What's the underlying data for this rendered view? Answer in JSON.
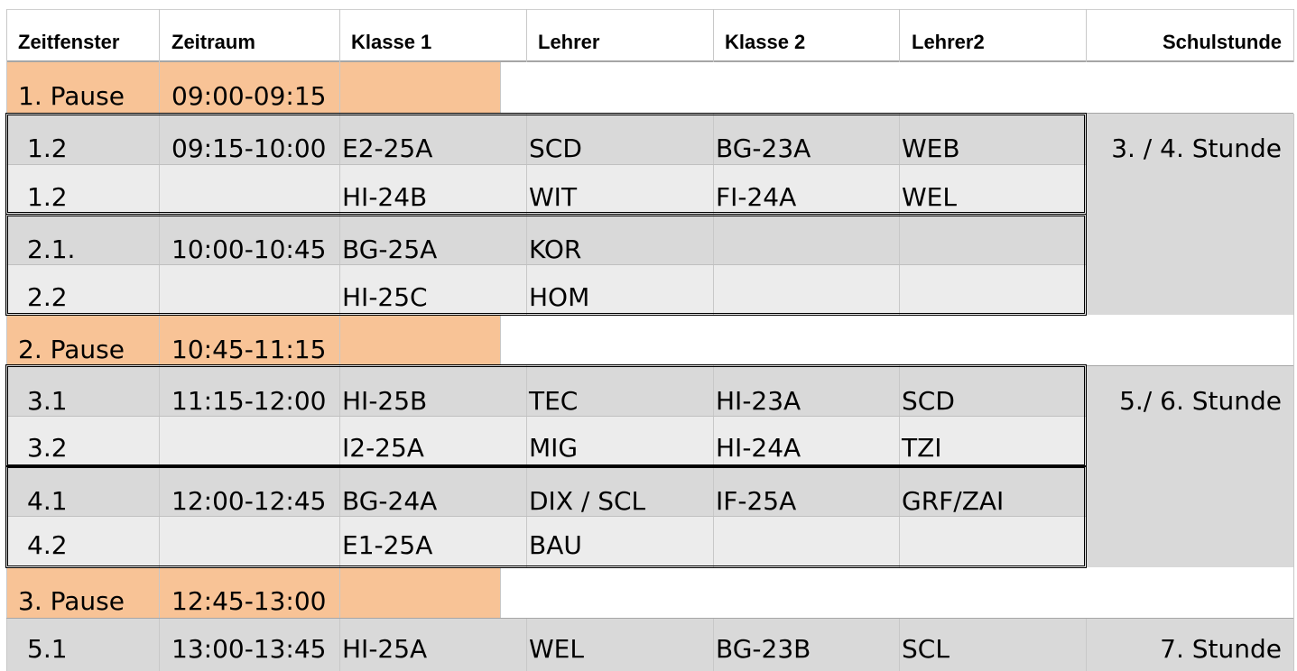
{
  "headers": {
    "zeitfenster": "Zeitfenster",
    "zeitraum": "Zeitraum",
    "klasse1": "Klasse 1",
    "lehrer": "Lehrer",
    "klasse2": "Klasse 2",
    "lehrer2": "Lehrer2",
    "schulstunde": "Schulstunde"
  },
  "pauses": [
    {
      "name": "1. Pause",
      "time": "09:00-09:15"
    },
    {
      "name": "2. Pause",
      "time": "10:45-11:15"
    },
    {
      "name": "3. Pause",
      "time": "12:45-13:00"
    }
  ],
  "rows": [
    {
      "slot": "1.2",
      "time": "09:15-10:00",
      "klasse1": "E2-25A",
      "lehrer": "SCD",
      "klasse2": "BG-23A",
      "lehrer2": "WEB"
    },
    {
      "slot": "1.2",
      "time": "",
      "klasse1": "HI-24B",
      "lehrer": "WIT",
      "klasse2": "FI-24A",
      "lehrer2": "WEL"
    },
    {
      "slot": "2.1.",
      "time": "10:00-10:45",
      "klasse1": "BG-25A",
      "lehrer": "KOR",
      "klasse2": "",
      "lehrer2": ""
    },
    {
      "slot": "2.2",
      "time": "",
      "klasse1": "HI-25C",
      "lehrer": "HOM",
      "klasse2": "",
      "lehrer2": ""
    },
    {
      "slot": "3.1",
      "time": "11:15-12:00",
      "klasse1": "HI-25B",
      "lehrer": "TEC",
      "klasse2": "HI-23A",
      "lehrer2": "SCD"
    },
    {
      "slot": "3.2",
      "time": "",
      "klasse1": "I2-25A",
      "lehrer": "MIG",
      "klasse2": "HI-24A",
      "lehrer2": "TZI"
    },
    {
      "slot": "4.1",
      "time": "12:00-12:45",
      "klasse1": "BG-24A",
      "lehrer": "DIX / SCL",
      "klasse2": "IF-25A",
      "lehrer2": "GRF/ZAI"
    },
    {
      "slot": "4.2",
      "time": "",
      "klasse1": "E1-25A",
      "lehrer": "BAU",
      "klasse2": "",
      "lehrer2": ""
    },
    {
      "slot": "5.1",
      "time": "13:00-13:45",
      "klasse1": "HI-25A",
      "lehrer": "WEL",
      "klasse2": "BG-23B",
      "lehrer2": "SCL"
    }
  ],
  "schulstunden": [
    "3. / 4. Stunde",
    "5./ 6. Stunde",
    "7. Stunde"
  ]
}
